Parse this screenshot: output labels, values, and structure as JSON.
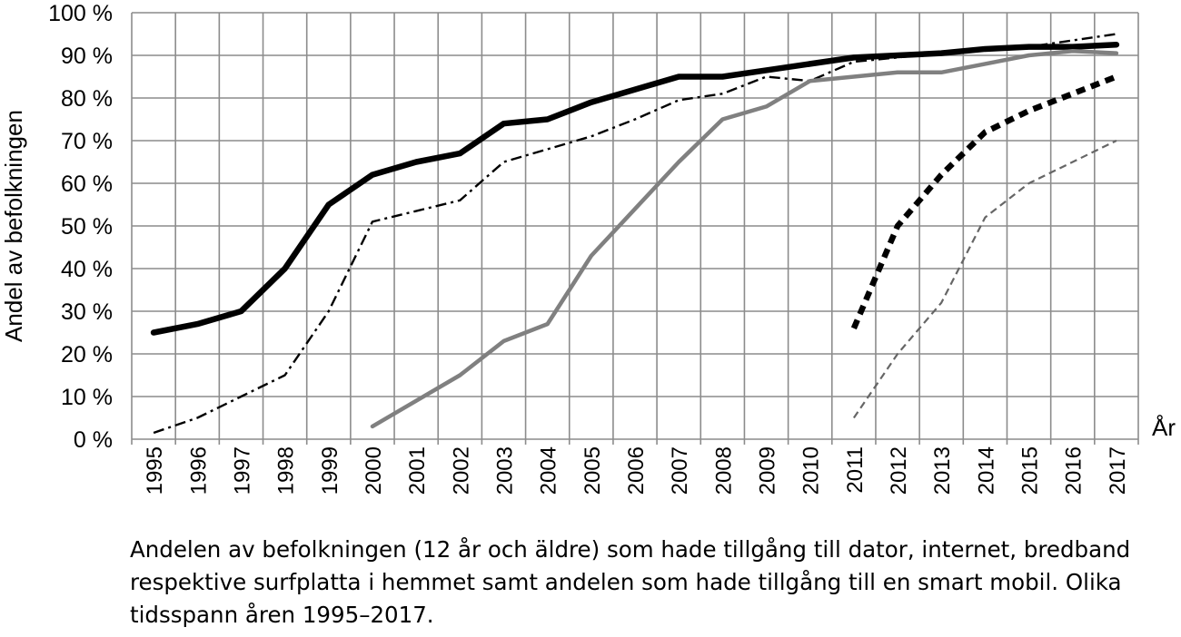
{
  "caption": "Andelen av befolkningen (12 år och äldre) som hade tillgång till dator, internet, bredband respektive surfplatta i hemmet samt andelen som hade tillgång till en smart mobil. Olika tidsspann åren 1995–2017.",
  "chart_data": {
    "type": "line",
    "title": "",
    "xlabel": "År",
    "ylabel": "Andel av befolkningen",
    "categories": [
      "1995",
      "1996",
      "1997",
      "1998",
      "1999",
      "2000",
      "2001",
      "2002",
      "2003",
      "2004",
      "2005",
      "2006",
      "2007",
      "2008",
      "2009",
      "2010",
      "2011",
      "2012",
      "2013",
      "2014",
      "2015",
      "2016",
      "2017"
    ],
    "ylim": [
      0,
      100
    ],
    "yticks": [
      "0 %",
      "10 %",
      "20 %",
      "30 %",
      "40 %",
      "50 %",
      "60 %",
      "70 %",
      "80 %",
      "90 %",
      "100 %"
    ],
    "grid": true,
    "legend": "none",
    "series": [
      {
        "style": "thin-dash-dot",
        "color": "#000000",
        "values": [
          1.5,
          5,
          10,
          15,
          30,
          51,
          53.5,
          56,
          65,
          68,
          71,
          75,
          79.5,
          81,
          85,
          84,
          88.5,
          89.5,
          90.5,
          91.5,
          92,
          93.5,
          95
        ]
      },
      {
        "style": "thick-solid",
        "color": "#000000",
        "values": [
          25,
          27,
          30,
          40,
          55,
          62,
          65,
          67,
          74,
          75,
          79,
          82,
          85,
          85,
          86.5,
          88,
          89.5,
          90,
          90.5,
          91.5,
          92,
          92,
          92.5
        ]
      },
      {
        "style": "medium-solid",
        "color": "#808080",
        "values": [
          null,
          null,
          null,
          null,
          null,
          3,
          9,
          15,
          23,
          27,
          43,
          54,
          65,
          75,
          78,
          84,
          85,
          86,
          86,
          88,
          90,
          91,
          90.5
        ]
      },
      {
        "style": "thick-dashed",
        "color": "#000000",
        "values": [
          null,
          null,
          null,
          null,
          null,
          null,
          null,
          null,
          null,
          null,
          null,
          null,
          null,
          null,
          null,
          null,
          26,
          50,
          62,
          72,
          77,
          81,
          85
        ]
      },
      {
        "style": "thin-dashed",
        "color": "#666666",
        "values": [
          null,
          null,
          null,
          null,
          null,
          null,
          null,
          null,
          null,
          null,
          null,
          null,
          null,
          null,
          null,
          null,
          5,
          20,
          32,
          52,
          60,
          65,
          70
        ]
      }
    ]
  }
}
